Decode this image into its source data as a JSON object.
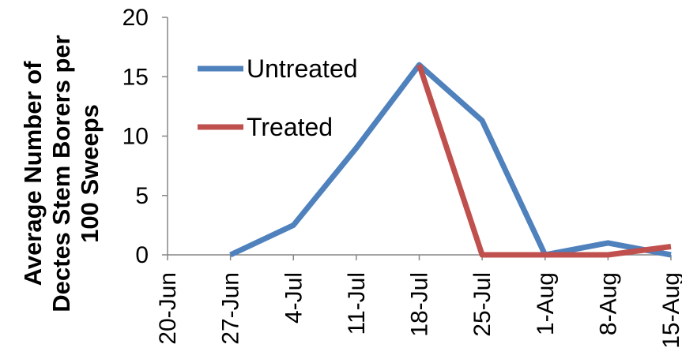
{
  "chart_data": {
    "type": "line",
    "title": "",
    "ylabel_lines": [
      "Average Number of",
      "Dectes Stem Borers per",
      "100 Sweeps"
    ],
    "xlabel": "",
    "categories": [
      "20-Jun",
      "27-Jun",
      "4-Jul",
      "11-Jul",
      "18-Jul",
      "25-Jul",
      "1-Aug",
      "8-Aug",
      "15-Aug"
    ],
    "ylim": [
      0,
      20
    ],
    "yticks": [
      0,
      5,
      10,
      15,
      20
    ],
    "grid": false,
    "legend_position": "upper-left inside plot",
    "series": [
      {
        "name": "Untreated",
        "color": "#4F81BD",
        "values": [
          null,
          0,
          2.5,
          9,
          16,
          11.3,
          0,
          1,
          0
        ]
      },
      {
        "name": "Treated",
        "color": "#C0504D",
        "values": [
          null,
          null,
          null,
          null,
          16,
          0,
          0,
          0,
          0.7
        ]
      }
    ]
  }
}
